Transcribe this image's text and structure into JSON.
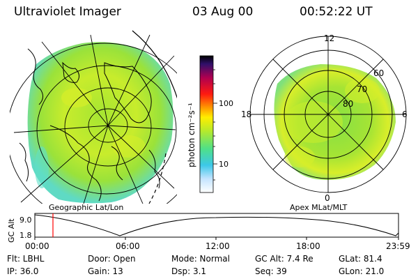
{
  "header": {
    "instrument": "Ultraviolet Imager",
    "date": "03 Aug 00",
    "time": "00:52:22 UT"
  },
  "colorbar": {
    "unit_label": "photon cm⁻²s⁻¹",
    "ticks": [
      "100",
      "10"
    ],
    "scale": "log"
  },
  "left_panel": {
    "label": "Geographic Lat/Lon"
  },
  "right_panel": {
    "label": "Apex MLat/MLT",
    "mlt_labels": [
      "12",
      "18",
      "6",
      "0"
    ],
    "mlat_labels": [
      "60",
      "70",
      "80"
    ]
  },
  "timeline": {
    "ylabel": "GC Alt",
    "ticks_y": [
      "9.0",
      "1.8"
    ],
    "ticks_x": [
      "00:00",
      "06:00",
      "12:00",
      "18:00",
      "23:59"
    ],
    "marker_time": "00:52:22"
  },
  "info": {
    "flt": "Flt: LBHL",
    "door": "Door: Open",
    "mode": "Mode: Normal",
    "gc_alt": "GC Alt: 7.4 Re",
    "glat": "GLat:  81.4",
    "ip": "IP: 36.0",
    "gain": "Gain: 13",
    "dsp": "Dsp:      3.1",
    "seq": "Seq: 39",
    "glon": "GLon:  21.0"
  },
  "colors": {
    "aurora_green": "#8fe03c",
    "aurora_yellow": "#d6ee2a",
    "aurora_cyan": "#5fe0c8",
    "marker": "#ff0000"
  }
}
